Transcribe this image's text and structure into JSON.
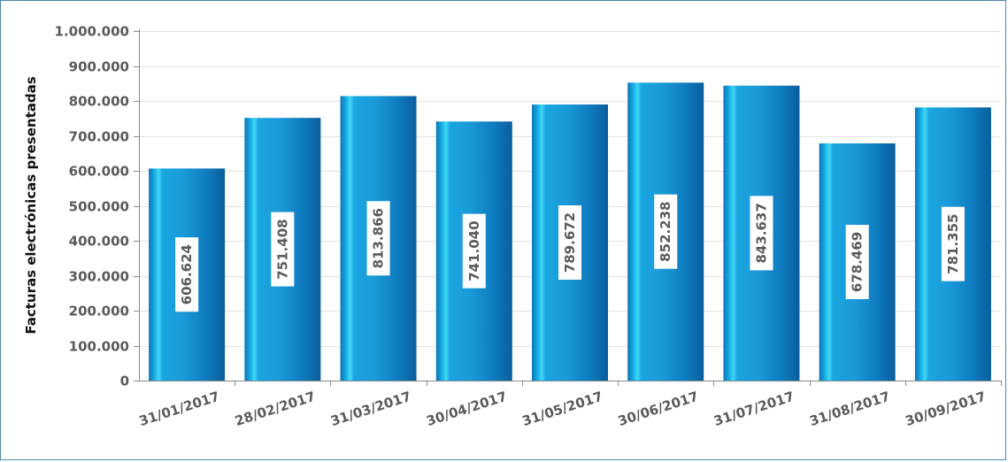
{
  "chart_data": {
    "type": "bar",
    "title": "",
    "xlabel": "",
    "ylabel": "Facturas electrónicas presentadas",
    "categories": [
      "31/01/2017",
      "28/02/2017",
      "31/03/2017",
      "30/04/2017",
      "31/05/2017",
      "30/06/2017",
      "31/07/2017",
      "31/08/2017",
      "30/09/2017"
    ],
    "values": [
      606624,
      751408,
      813866,
      741040,
      789672,
      852238,
      843637,
      678469,
      781355
    ],
    "value_labels": [
      "606.624",
      "751.408",
      "813.866",
      "741.040",
      "789.672",
      "852.238",
      "843.637",
      "678.469",
      "781.355"
    ],
    "ylim": [
      0,
      1000000
    ],
    "yticks": [
      0,
      100000,
      200000,
      300000,
      400000,
      500000,
      600000,
      700000,
      800000,
      900000,
      1000000
    ],
    "ytick_labels": [
      "0",
      "100.000",
      "200.000",
      "300.000",
      "400.000",
      "500.000",
      "600.000",
      "700.000",
      "800.000",
      "900.000",
      "1.000.000"
    ],
    "grid": true,
    "legend": "none",
    "colors": {
      "bar_dark": "#0a6fb4",
      "bar_mid": "#1aa0dc",
      "bar_light": "#35d2f5",
      "grid": "#e2e2e2",
      "axis": "#8a8a8a",
      "border": "#4a88b8"
    }
  }
}
